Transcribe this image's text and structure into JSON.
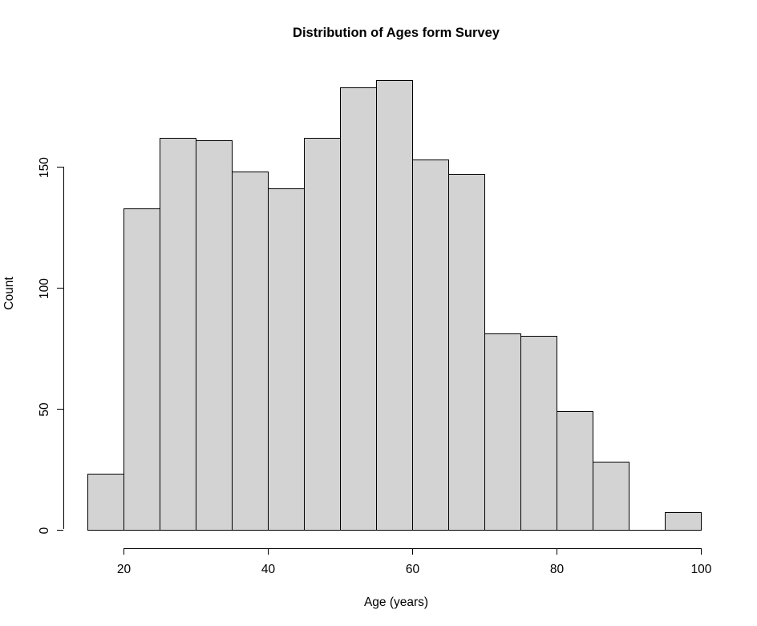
{
  "chart_data": {
    "type": "bar",
    "subtype": "histogram",
    "title": "Distribution of Ages form Survey",
    "xlabel": "Age (years)",
    "ylabel": "Count",
    "bin_width": 5,
    "bin_edges": [
      15,
      20,
      25,
      30,
      35,
      40,
      45,
      50,
      55,
      60,
      65,
      70,
      75,
      80,
      85,
      90,
      95,
      100
    ],
    "counts": [
      23,
      133,
      162,
      161,
      148,
      141,
      162,
      183,
      186,
      153,
      147,
      81,
      80,
      49,
      28,
      0,
      7
    ],
    "x_ticks": [
      20,
      40,
      60,
      80,
      100
    ],
    "y_ticks": [
      0,
      50,
      100,
      150
    ],
    "xlim": [
      15,
      100
    ],
    "ylim": [
      0,
      190
    ],
    "grid": false,
    "legend": "none",
    "bar_fill_color": "#d3d3d3",
    "bar_border_color": "#000000",
    "background_color": "#ffffff",
    "text_color": "#000000"
  }
}
